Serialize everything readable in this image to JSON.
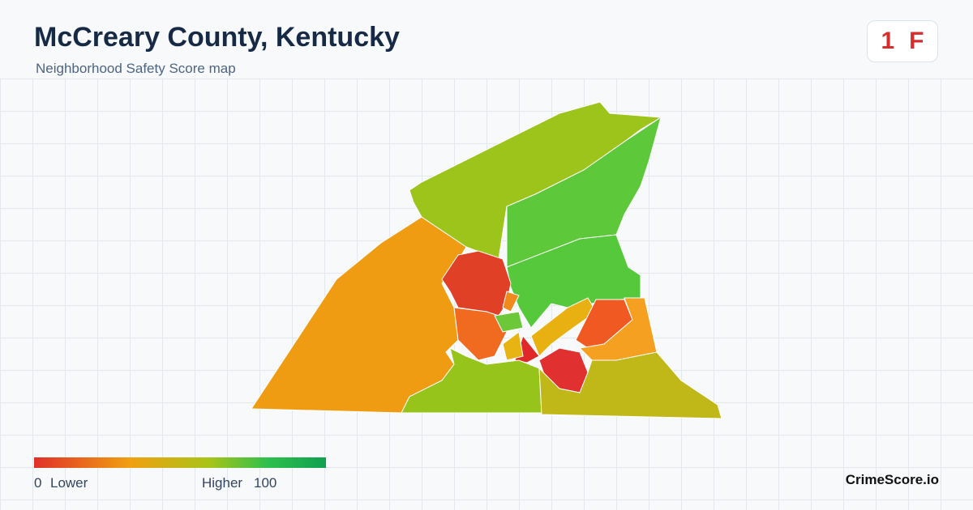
{
  "header": {
    "title": "McCreary County, Kentucky",
    "subtitle": "Neighborhood Safety Score map",
    "score": "1",
    "grade": "F"
  },
  "legend": {
    "min": "0",
    "min_label": "Lower",
    "max_label": "Higher",
    "max": "100"
  },
  "footer": {
    "brand": "CrimeScore.io"
  }
}
